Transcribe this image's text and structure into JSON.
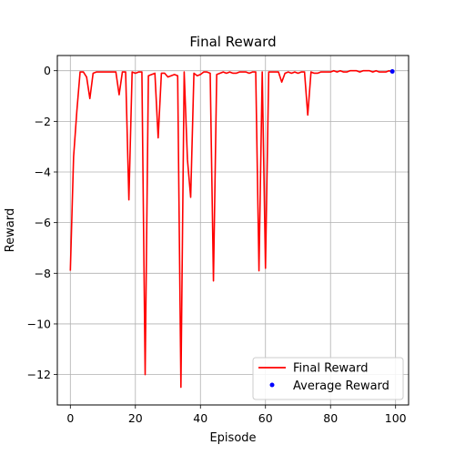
{
  "chart_data": {
    "type": "line",
    "title": "Final Reward",
    "xlabel": "Episode",
    "ylabel": "Reward",
    "xlim": [
      -4,
      104
    ],
    "ylim": [
      -13.2,
      0.6
    ],
    "xticks": [
      0,
      20,
      40,
      60,
      80,
      100
    ],
    "yticks": [
      0,
      -2,
      -4,
      -6,
      -8,
      -10,
      -12
    ],
    "grid": true,
    "legend_position": "lower-right",
    "series": [
      {
        "name": "Final Reward",
        "kind": "line",
        "color": "#ff0000",
        "x": [
          0,
          1,
          2,
          3,
          4,
          5,
          6,
          7,
          8,
          9,
          10,
          11,
          12,
          13,
          14,
          15,
          16,
          17,
          18,
          19,
          20,
          21,
          22,
          23,
          24,
          25,
          26,
          27,
          28,
          29,
          30,
          31,
          32,
          33,
          34,
          35,
          36,
          37,
          38,
          39,
          40,
          41,
          42,
          43,
          44,
          45,
          46,
          47,
          48,
          49,
          50,
          51,
          52,
          53,
          54,
          55,
          56,
          57,
          58,
          59,
          60,
          61,
          62,
          63,
          64,
          65,
          66,
          67,
          68,
          69,
          70,
          71,
          72,
          73,
          74,
          75,
          76,
          77,
          78,
          79,
          80,
          81,
          82,
          83,
          84,
          85,
          86,
          87,
          88,
          89,
          90,
          91,
          92,
          93,
          94,
          95,
          96,
          97,
          98,
          99
        ],
        "values": [
          -7.9,
          -3.4,
          -1.6,
          -0.05,
          -0.05,
          -0.25,
          -1.1,
          -0.1,
          -0.05,
          -0.05,
          -0.05,
          -0.05,
          -0.05,
          -0.05,
          -0.05,
          -0.95,
          -0.05,
          -0.05,
          -5.1,
          -0.05,
          -0.1,
          -0.05,
          -0.05,
          -12.0,
          -0.2,
          -0.15,
          -0.1,
          -2.65,
          -0.1,
          -0.1,
          -0.25,
          -0.2,
          -0.15,
          -0.2,
          -12.5,
          -0.05,
          -3.5,
          -5.0,
          -0.1,
          -0.2,
          -0.15,
          -0.05,
          -0.05,
          -0.1,
          -8.3,
          -0.15,
          -0.1,
          -0.05,
          -0.1,
          -0.05,
          -0.1,
          -0.1,
          -0.05,
          -0.05,
          -0.05,
          -0.1,
          -0.05,
          -0.05,
          -7.9,
          -0.05,
          -7.8,
          -0.05,
          -0.05,
          -0.05,
          -0.05,
          -0.45,
          -0.1,
          -0.05,
          -0.1,
          -0.05,
          -0.1,
          -0.05,
          -0.05,
          -1.75,
          -0.05,
          -0.1,
          -0.1,
          -0.05,
          -0.05,
          -0.05,
          -0.05,
          0.0,
          -0.05,
          0.0,
          -0.05,
          -0.05,
          0.0,
          0.0,
          0.0,
          -0.05,
          0.0,
          0.0,
          0.0,
          -0.05,
          0.0,
          -0.05,
          -0.05,
          -0.05,
          0.0,
          -0.05
        ]
      },
      {
        "name": "Average Reward",
        "kind": "scatter",
        "color": "#0000ff",
        "x": [
          99
        ],
        "values": [
          -0.03
        ]
      }
    ]
  }
}
